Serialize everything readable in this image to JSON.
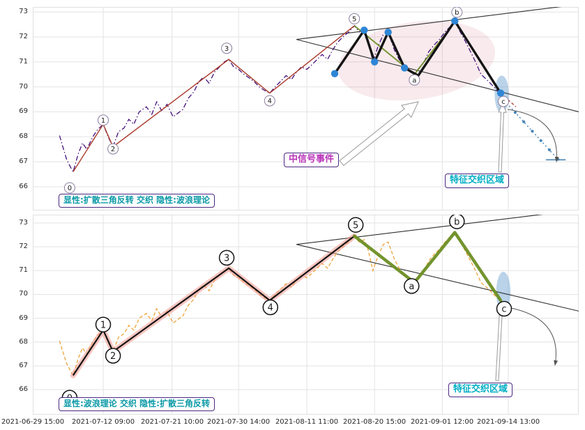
{
  "chart_data": {
    "type": "line",
    "description": "Dual-panel price chart with Elliott wave (0-5, a-b-c) and expanding triangle reversal analysis",
    "x_ticks": [
      {
        "pos": 0.0,
        "label": "2021-06-29 15:00"
      },
      {
        "pos": 12.9,
        "label": "2021-07-12 09:00"
      },
      {
        "pos": 25.5,
        "label": "2021-07-21 10:00"
      },
      {
        "pos": 37.7,
        "label": "2021-07-30 14:00"
      },
      {
        "pos": 50.2,
        "label": "2021-08-11 11:00"
      },
      {
        "pos": 62.6,
        "label": "2021-08-20 15:00"
      },
      {
        "pos": 75.0,
        "label": "2021-09-01 12:00"
      },
      {
        "pos": 87.1,
        "label": "2021-09-14 13:00"
      }
    ],
    "y_ticks": [
      66,
      67,
      68,
      69,
      70,
      71,
      72,
      73
    ],
    "price": {
      "name": "price-series",
      "points": [
        [
          4.9,
          68.05
        ],
        [
          5.5,
          67.6
        ],
        [
          6.2,
          67.1
        ],
        [
          7.0,
          66.75
        ],
        [
          7.4,
          66.6
        ],
        [
          8.3,
          67.3
        ],
        [
          9.1,
          67.75
        ],
        [
          9.9,
          67.5
        ],
        [
          11.0,
          68.0
        ],
        [
          11.9,
          68.3
        ],
        [
          12.9,
          68.5
        ],
        [
          13.8,
          68.0
        ],
        [
          14.7,
          67.6
        ],
        [
          15.7,
          68.2
        ],
        [
          16.7,
          68.35
        ],
        [
          17.6,
          68.7
        ],
        [
          18.5,
          68.5
        ],
        [
          19.5,
          69.0
        ],
        [
          20.8,
          69.2
        ],
        [
          21.8,
          68.9
        ],
        [
          22.7,
          69.4
        ],
        [
          23.6,
          69.05
        ],
        [
          24.6,
          69.3
        ],
        [
          25.7,
          68.8
        ],
        [
          26.6,
          68.95
        ],
        [
          27.5,
          69.1
        ],
        [
          28.5,
          69.55
        ],
        [
          29.5,
          69.8
        ],
        [
          30.4,
          70.2
        ],
        [
          31.3,
          70.4
        ],
        [
          32.3,
          70.15
        ],
        [
          33.3,
          70.6
        ],
        [
          34.2,
          70.8
        ],
        [
          35.1,
          71.0
        ],
        [
          35.9,
          71.1
        ],
        [
          36.8,
          70.8
        ],
        [
          37.7,
          70.7
        ],
        [
          38.7,
          70.5
        ],
        [
          39.7,
          70.35
        ],
        [
          40.6,
          70.2
        ],
        [
          41.5,
          70.0
        ],
        [
          42.5,
          69.85
        ],
        [
          43.4,
          69.75
        ],
        [
          44.4,
          70.0
        ],
        [
          45.3,
          70.2
        ],
        [
          46.4,
          70.45
        ],
        [
          47.4,
          70.3
        ],
        [
          48.3,
          70.6
        ],
        [
          49.2,
          70.8
        ],
        [
          50.2,
          70.7
        ],
        [
          51.2,
          70.9
        ],
        [
          52.1,
          71.1
        ],
        [
          53.0,
          71.3
        ],
        [
          54.0,
          71.1
        ],
        [
          55.0,
          71.5
        ],
        [
          55.9,
          71.8
        ],
        [
          56.8,
          72.0
        ],
        [
          57.9,
          72.2
        ],
        [
          58.9,
          72.45
        ],
        [
          59.8,
          72.2
        ],
        [
          60.7,
          72.3
        ],
        [
          61.4,
          71.9
        ],
        [
          62.3,
          71.0
        ],
        [
          63.2,
          71.6
        ],
        [
          64.2,
          72.1
        ],
        [
          65.1,
          72.2
        ],
        [
          66.2,
          71.5
        ],
        [
          67.1,
          71.1
        ],
        [
          68.1,
          70.8
        ],
        [
          69.1,
          70.6
        ],
        [
          69.9,
          70.5
        ],
        [
          70.6,
          70.7
        ],
        [
          71.7,
          71.0
        ],
        [
          72.5,
          71.4
        ],
        [
          73.4,
          71.65
        ],
        [
          74.5,
          71.9
        ],
        [
          75.5,
          72.2
        ],
        [
          76.4,
          72.4
        ],
        [
          77.3,
          72.6
        ],
        [
          78.3,
          72.2
        ],
        [
          79.3,
          71.8
        ],
        [
          80.2,
          71.4
        ],
        [
          81.1,
          71.0
        ],
        [
          82.1,
          70.5
        ],
        [
          83.1,
          70.3
        ],
        [
          84.0,
          70.1
        ],
        [
          84.9,
          69.9
        ],
        [
          85.7,
          69.75
        ],
        [
          86.6,
          69.55
        ]
      ]
    },
    "waves": {
      "labels": [
        "0",
        "1",
        "2",
        "3",
        "4",
        "5",
        "a",
        "b",
        "c"
      ],
      "points": [
        [
          7.4,
          66.6
        ],
        [
          12.9,
          68.5
        ],
        [
          14.7,
          67.6
        ],
        [
          35.9,
          71.1
        ],
        [
          43.4,
          69.75
        ],
        [
          58.9,
          72.45
        ],
        [
          69.9,
          70.5
        ],
        [
          77.3,
          72.6
        ],
        [
          85.7,
          69.75
        ]
      ]
    },
    "signal": {
      "line": [
        [
          55.3,
          70.53
        ],
        [
          60.7,
          72.27
        ],
        [
          62.6,
          71.0
        ],
        [
          65.1,
          72.19
        ],
        [
          68.1,
          70.76
        ],
        [
          70.6,
          70.45
        ],
        [
          77.3,
          72.64
        ],
        [
          85.7,
          69.75
        ]
      ],
      "dots": [
        [
          55.3,
          70.53
        ],
        [
          60.7,
          72.27
        ],
        [
          62.6,
          71.0
        ],
        [
          65.1,
          72.19
        ],
        [
          68.1,
          70.76
        ],
        [
          77.3,
          72.64
        ],
        [
          85.7,
          69.75
        ]
      ]
    },
    "forecast": {
      "stub": [
        [
          85.7,
          69.75
        ],
        [
          88.5,
          69.2
        ]
      ],
      "line": [
        [
          86.8,
          69.35
        ],
        [
          96.2,
          67.1
        ]
      ],
      "cap": [
        [
          94.0,
          67.08
        ],
        [
          97.6,
          67.08
        ]
      ]
    },
    "trendlines": {
      "top": [
        [
          [
            48.3,
            71.9
          ],
          [
            100,
            73.3
          ]
        ],
        [
          [
            48.3,
            71.9
          ],
          [
            100,
            69.0
          ]
        ]
      ],
      "bottom": [
        [
          [
            48.3,
            72.1
          ],
          [
            100,
            73.55
          ]
        ],
        [
          [
            48.3,
            72.1
          ],
          [
            100,
            69.3
          ]
        ]
      ]
    },
    "regions": {
      "signal_ellipse": {
        "cx": 70.3,
        "cy": 71.05,
        "rx": 14.5,
        "ry": 1.55,
        "rot": -8,
        "color": "#c4506a",
        "opacity": 0.12
      },
      "feature_ellipse_top": {
        "cx": 85.9,
        "cy": 69.7,
        "rx": 1.3,
        "ry": 0.75,
        "color": "#76a7d4",
        "opacity": 0.5
      },
      "feature_ellipse_bottom": {
        "cx": 86.2,
        "cy": 70.1,
        "rx": 1.3,
        "ry": 0.85,
        "color": "#76a7d4",
        "opacity": 0.5
      }
    },
    "panels": [
      {
        "id": "top",
        "y_range": [
          65.05,
          73.2
        ],
        "caption": "显性:扩散三角反转 交织 隐性:波浪理论",
        "zone_label": "特征交织区域",
        "signal_label": "中信号事件"
      },
      {
        "id": "bottom",
        "y_range": [
          64.95,
          73.35
        ],
        "caption": "显性:波浪理论 交织 隐性:扩散三角反转",
        "zone_label": "特征交织区域"
      }
    ],
    "colors": {
      "grid": "#e3e3e3",
      "spine": "#e0e0e0",
      "tick_text": "#262626",
      "price_top": "#45107a",
      "price_bottom": "#eda339",
      "impulse_top": "#a93a2b",
      "impulse_bottom": "#141414",
      "impulse_glow": "#f4978e",
      "corrective": "#6b8e23",
      "signal_path": "#141414",
      "signal_dot": "#2e86d5",
      "forecast": "#4682b4",
      "trendline": "#2f2f2f",
      "box_border": "#4b2882",
      "signal_label_text": "#b832b8",
      "zone_label_text": "#00aec4",
      "caption_text": "#0b9aa6"
    }
  }
}
